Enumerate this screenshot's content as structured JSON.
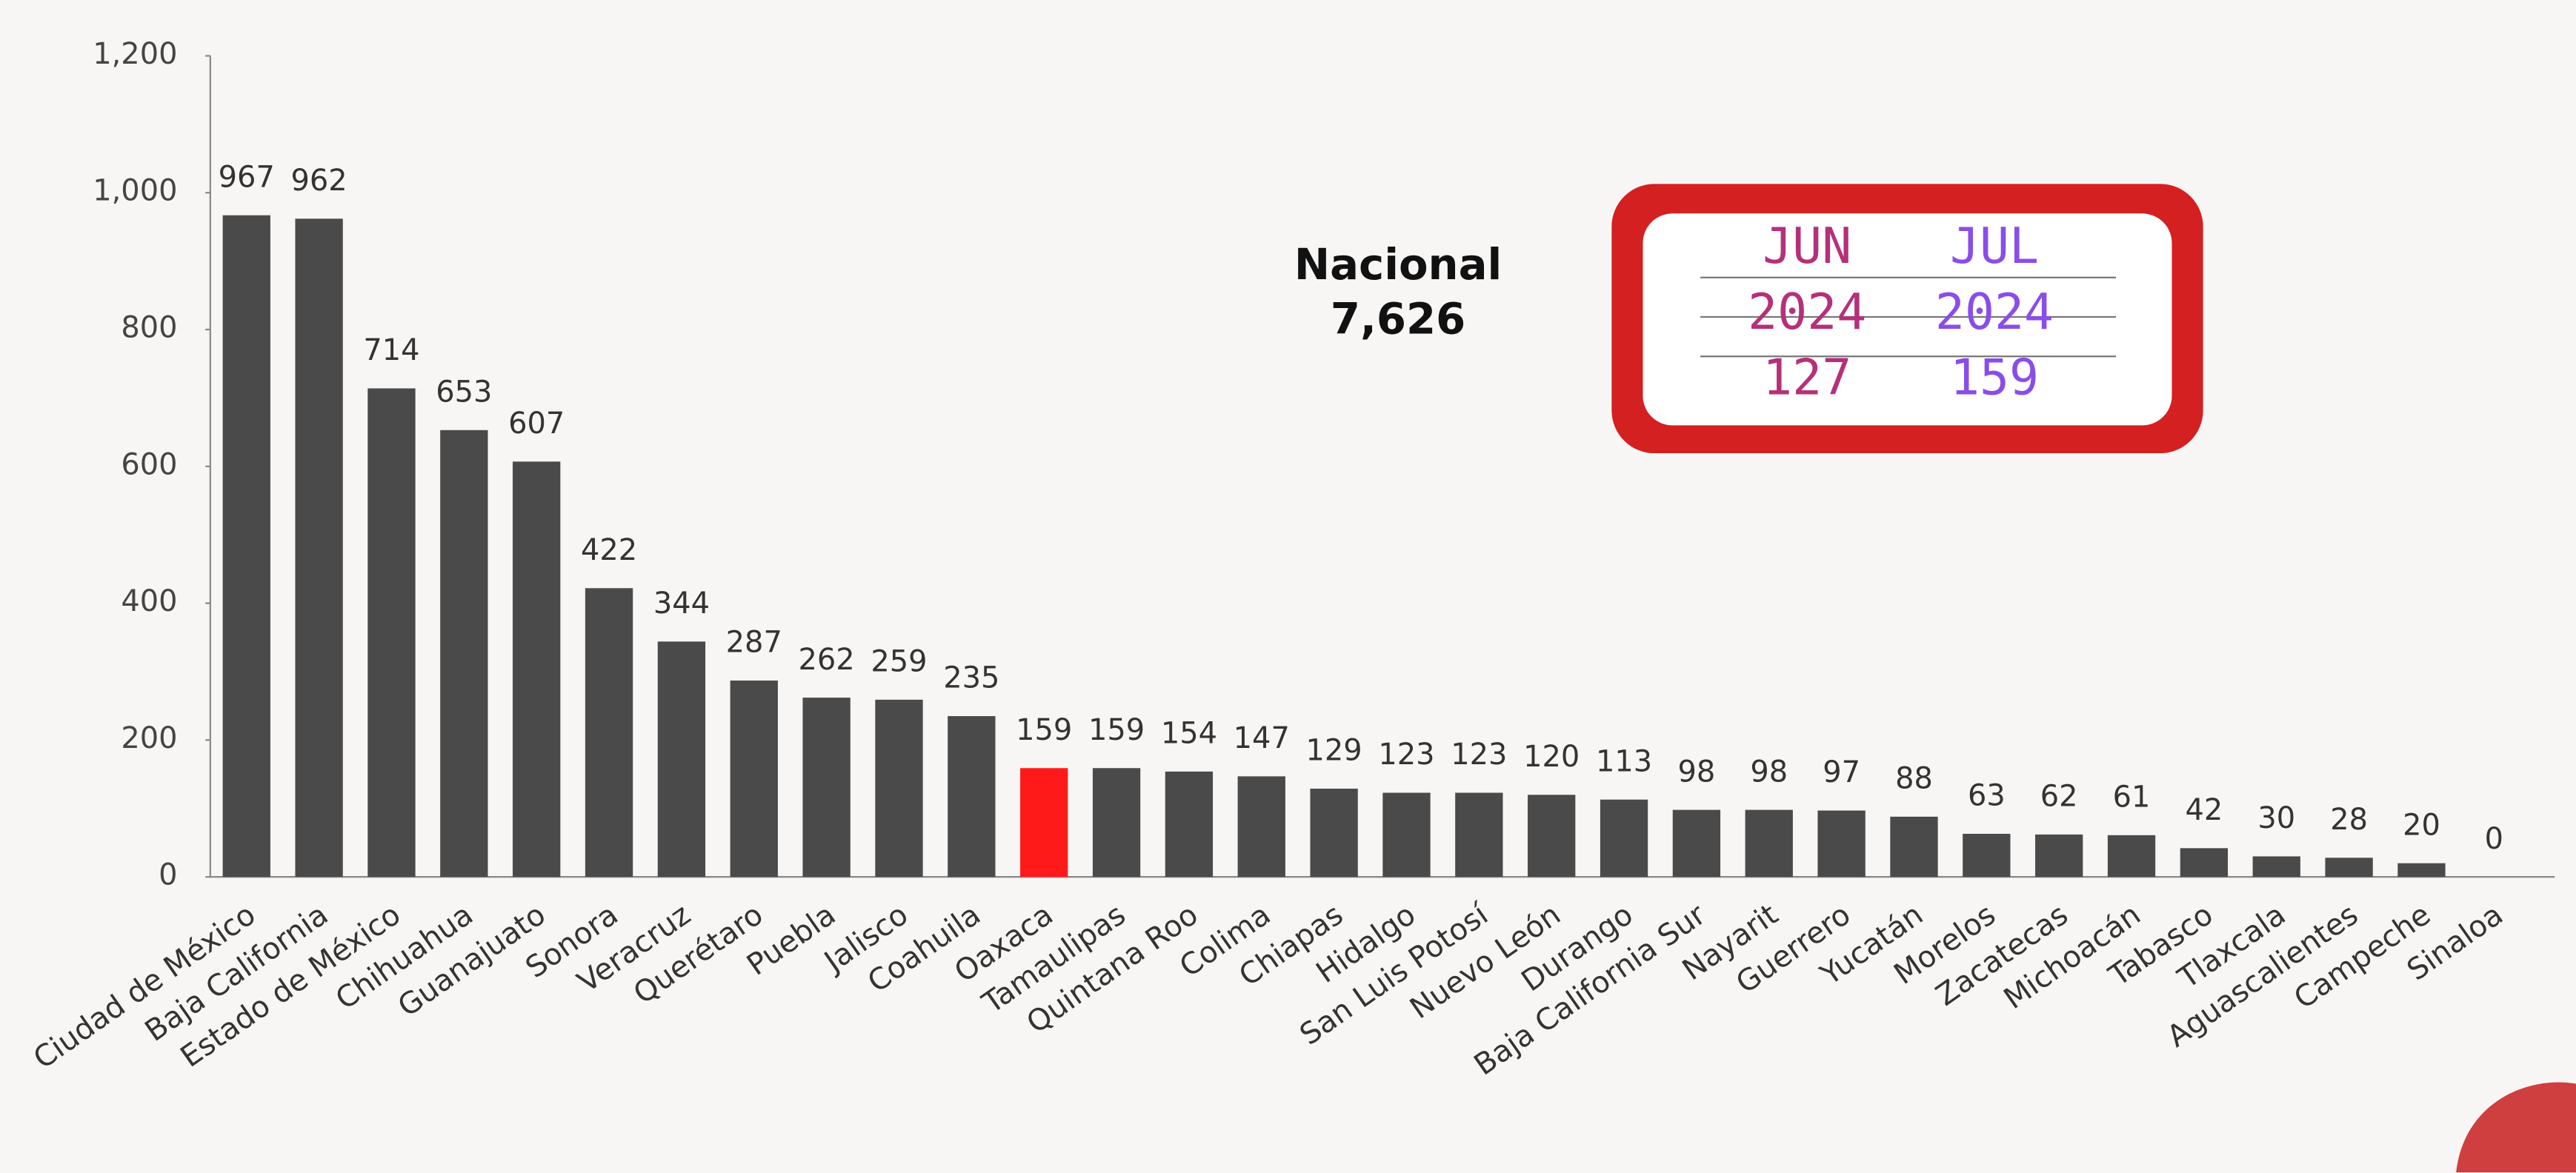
{
  "chart_data": {
    "type": "bar",
    "categories": [
      "Ciudad de México",
      "Baja California",
      "Estado de México",
      "Chihuahua",
      "Guanajuato",
      "Sonora",
      "Veracruz",
      "Querétaro",
      "Puebla",
      "Jalisco",
      "Coahuila",
      "Oaxaca",
      "Tamaulipas",
      "Quintana Roo",
      "Colima",
      "Chiapas",
      "Hidalgo",
      "San Luis Potosí",
      "Nuevo León",
      "Durango",
      "Baja California Sur",
      "Nayarit",
      "Guerrero",
      "Yucatán",
      "Morelos",
      "Zacatecas",
      "Michoacán",
      "Tabasco",
      "Tlaxcala",
      "Aguascalientes",
      "Campeche",
      "Sinaloa"
    ],
    "values": [
      967,
      962,
      714,
      653,
      607,
      422,
      344,
      287,
      262,
      259,
      235,
      159,
      159,
      154,
      147,
      129,
      123,
      123,
      120,
      113,
      98,
      98,
      97,
      88,
      63,
      62,
      61,
      42,
      30,
      28,
      20,
      0
    ],
    "colors": [
      "#4a4a4a",
      "#4a4a4a",
      "#4a4a4a",
      "#4a4a4a",
      "#4a4a4a",
      "#4a4a4a",
      "#4a4a4a",
      "#4a4a4a",
      "#4a4a4a",
      "#4a4a4a",
      "#4a4a4a",
      "#ff1a1a",
      "#4a4a4a",
      "#4a4a4a",
      "#4a4a4a",
      "#4a4a4a",
      "#4a4a4a",
      "#4a4a4a",
      "#4a4a4a",
      "#4a4a4a",
      "#4a4a4a",
      "#4a4a4a",
      "#4a4a4a",
      "#4a4a4a",
      "#4a4a4a",
      "#4a4a4a",
      "#4a4a4a",
      "#4a4a4a",
      "#4a4a4a",
      "#4a4a4a",
      "#4a4a4a",
      "#4a4a4a"
    ],
    "ylim": [
      0,
      1200
    ],
    "yticks": [
      0,
      200,
      400,
      600,
      800,
      {
        "value": 1000,
        "label": "1,000"
      },
      {
        "value": 1200,
        "label": "1,200"
      }
    ],
    "grid": false,
    "annotation": {
      "title": "Nacional",
      "total": {
        "value": 7626,
        "label": "7,626"
      }
    },
    "comparison": [
      {
        "month": "JUN",
        "year": 2024,
        "value": 127,
        "color": "#b5307a"
      },
      {
        "month": "JUL",
        "year": 2024,
        "value": 159,
        "color": "#8a4de8"
      }
    ]
  }
}
